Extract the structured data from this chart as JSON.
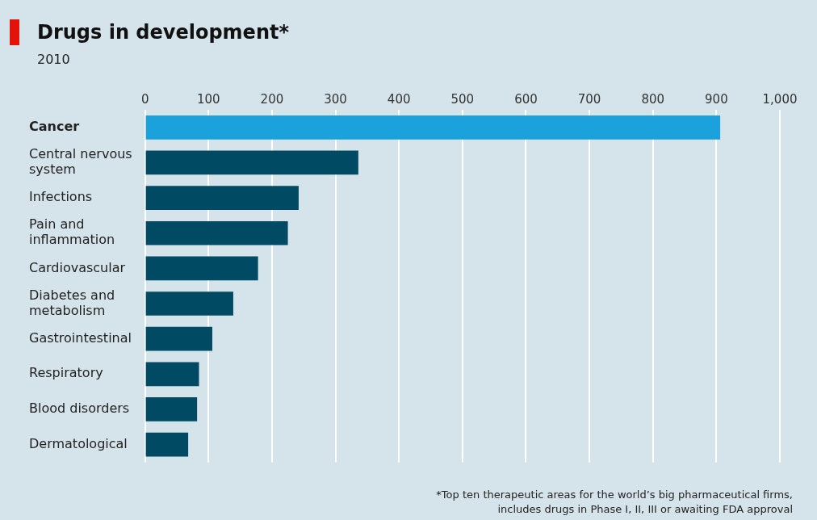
{
  "chart_data": {
    "type": "bar",
    "orientation": "horizontal",
    "title": "Drugs in development*",
    "subtitle": "2010",
    "categories": [
      "Cancer",
      "Central nervous system",
      "Infections",
      "Pain and inflammation",
      "Cardiovascular",
      "Diabetes and metabolism",
      "Gastrointestinal",
      "Respiratory",
      "Blood disorders",
      "Dermatological"
    ],
    "values": [
      906,
      336,
      242,
      225,
      178,
      139,
      106,
      85,
      82,
      68
    ],
    "colors": [
      "#1ba1dc",
      "#004a63",
      "#004a63",
      "#004a63",
      "#004a63",
      "#004a63",
      "#004a63",
      "#004a63",
      "#004a63",
      "#004a63"
    ],
    "xlim": [
      0,
      1000
    ],
    "xticks": [
      0,
      100,
      200,
      300,
      400,
      500,
      600,
      700,
      800,
      900,
      {
        "value": 1000,
        "label": "1,000"
      }
    ],
    "grid": "x",
    "legend": false,
    "annotations": [
      "*Top ten therapeutic areas for the world’s big pharmaceutical firms, includes drugs in Phase I, II, III or awaiting FDA approval"
    ]
  }
}
